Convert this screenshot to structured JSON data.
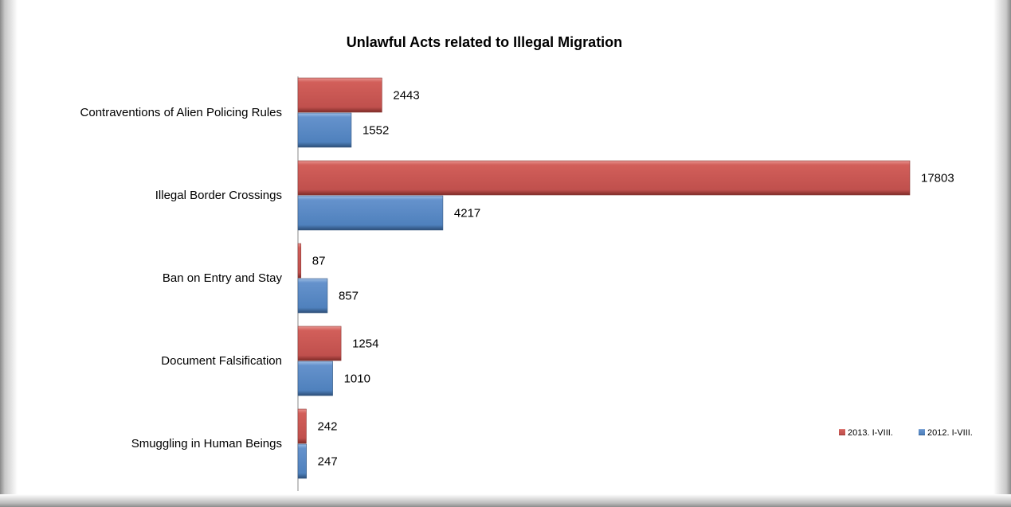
{
  "chart_data": {
    "type": "bar",
    "orientation": "horizontal",
    "title": "Unlawful Acts related to Illegal Migration",
    "categories": [
      "Contraventions of Alien Policing Rules",
      "Illegal Border Crossings",
      "Ban on Entry and Stay",
      "Document Falsification",
      "Smuggling in Human Beings"
    ],
    "series": [
      {
        "name": "2013. I-VIII.",
        "color": "#c0504d",
        "values": [
          2443,
          17803,
          87,
          1254,
          242
        ]
      },
      {
        "name": "2012. I-VIII.",
        "color": "#4f81bd",
        "values": [
          1552,
          4217,
          857,
          1010,
          247
        ]
      }
    ],
    "xlim": [
      0,
      18000
    ],
    "legend_position": "bottom-right",
    "grid": false,
    "data_labels": true
  }
}
